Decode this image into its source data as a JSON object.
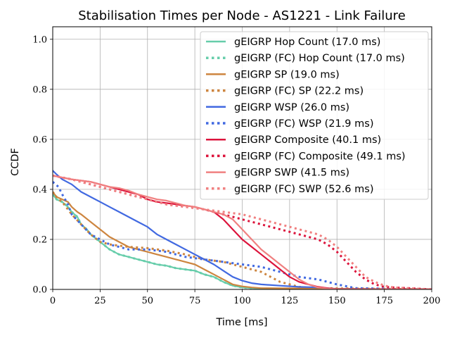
{
  "chart_data": {
    "type": "line",
    "title": "Stabilisation Times per Node - AS1221 - Link Failure",
    "xlabel": "Time [ms]",
    "ylabel": "CCDF",
    "xlim": [
      0,
      200
    ],
    "ylim": [
      0,
      1.05
    ],
    "xticks": [
      0,
      25,
      50,
      75,
      100,
      125,
      150,
      175,
      200
    ],
    "xtick_labels": [
      "0",
      "25",
      "50",
      "75",
      "100",
      "125",
      "150",
      "175",
      "200"
    ],
    "yticks": [
      0.0,
      0.2,
      0.4,
      0.6,
      0.8,
      1.0
    ],
    "ytick_labels": [
      "0.0",
      "0.2",
      "0.4",
      "0.6",
      "0.8",
      "1.0"
    ],
    "grid": true,
    "legend_position": "upper-right",
    "series": [
      {
        "name": "gEIGRP Hop Count (17.0 ms)",
        "color": "#66cdaa",
        "style": "solid",
        "x": [
          0,
          2,
          5,
          8,
          10,
          13,
          15,
          18,
          20,
          25,
          30,
          35,
          40,
          45,
          50,
          55,
          60,
          65,
          70,
          75,
          80,
          85,
          90,
          95,
          100,
          105,
          110,
          200
        ],
        "y": [
          0.38,
          0.36,
          0.35,
          0.33,
          0.31,
          0.29,
          0.26,
          0.24,
          0.22,
          0.19,
          0.16,
          0.14,
          0.13,
          0.12,
          0.11,
          0.1,
          0.095,
          0.085,
          0.08,
          0.075,
          0.06,
          0.05,
          0.03,
          0.015,
          0.008,
          0.005,
          0.003,
          0.0
        ]
      },
      {
        "name": "gEIGRP (FC) Hop Count (17.0 ms)",
        "color": "#66cdaa",
        "style": "dotted",
        "x": [
          0,
          2,
          5,
          8,
          10,
          13,
          15,
          18,
          20,
          25,
          30,
          35,
          40,
          45,
          50,
          55,
          60,
          65,
          70,
          75,
          80,
          85,
          90,
          95,
          100,
          105,
          110,
          200
        ],
        "y": [
          0.38,
          0.36,
          0.35,
          0.33,
          0.31,
          0.29,
          0.26,
          0.24,
          0.22,
          0.19,
          0.16,
          0.14,
          0.13,
          0.12,
          0.11,
          0.1,
          0.095,
          0.085,
          0.08,
          0.075,
          0.06,
          0.05,
          0.03,
          0.015,
          0.008,
          0.005,
          0.003,
          0.0
        ]
      },
      {
        "name": "gEIGRP SP (19.0 ms)",
        "color": "#cd853f",
        "style": "solid",
        "x": [
          0,
          2,
          5,
          8,
          10,
          13,
          15,
          20,
          25,
          30,
          35,
          40,
          45,
          50,
          55,
          60,
          65,
          70,
          75,
          80,
          85,
          90,
          95,
          100,
          105,
          110,
          200
        ],
        "y": [
          0.39,
          0.37,
          0.36,
          0.35,
          0.33,
          0.31,
          0.3,
          0.27,
          0.24,
          0.21,
          0.19,
          0.17,
          0.16,
          0.15,
          0.14,
          0.13,
          0.12,
          0.11,
          0.1,
          0.08,
          0.06,
          0.04,
          0.02,
          0.012,
          0.008,
          0.005,
          0.0
        ]
      },
      {
        "name": "gEIGRP (FC) SP (22.2 ms)",
        "color": "#cd853f",
        "style": "dotted",
        "x": [
          0,
          3,
          5,
          10,
          15,
          20,
          25,
          30,
          40,
          50,
          60,
          70,
          80,
          90,
          100,
          110,
          120,
          130,
          140,
          200
        ],
        "y": [
          0.39,
          0.36,
          0.35,
          0.3,
          0.26,
          0.22,
          0.19,
          0.18,
          0.17,
          0.165,
          0.155,
          0.14,
          0.12,
          0.11,
          0.09,
          0.07,
          0.03,
          0.01,
          0.005,
          0.0
        ]
      },
      {
        "name": "gEIGRP WSP (26.0 ms)",
        "color": "#4169e1",
        "style": "solid",
        "x": [
          0,
          2,
          5,
          10,
          15,
          20,
          25,
          30,
          35,
          40,
          45,
          50,
          55,
          60,
          65,
          70,
          75,
          80,
          85,
          90,
          95,
          100,
          105,
          110,
          120,
          130,
          140,
          150,
          200
        ],
        "y": [
          0.475,
          0.46,
          0.44,
          0.42,
          0.39,
          0.37,
          0.35,
          0.33,
          0.31,
          0.29,
          0.27,
          0.25,
          0.22,
          0.2,
          0.18,
          0.16,
          0.14,
          0.12,
          0.1,
          0.075,
          0.05,
          0.035,
          0.025,
          0.02,
          0.015,
          0.01,
          0.008,
          0.002,
          0.0
        ]
      },
      {
        "name": "gEIGRP (FC) WSP (21.9 ms)",
        "color": "#4169e1",
        "style": "dotted",
        "x": [
          0,
          3,
          5,
          8,
          10,
          15,
          20,
          25,
          30,
          35,
          40,
          50,
          60,
          70,
          80,
          90,
          100,
          110,
          120,
          130,
          140,
          145,
          150,
          160,
          200
        ],
        "y": [
          0.43,
          0.41,
          0.38,
          0.34,
          0.3,
          0.26,
          0.22,
          0.2,
          0.18,
          0.17,
          0.16,
          0.16,
          0.15,
          0.13,
          0.12,
          0.11,
          0.1,
          0.09,
          0.07,
          0.05,
          0.04,
          0.03,
          0.02,
          0.005,
          0.0
        ]
      },
      {
        "name": "gEIGRP Composite (40.1 ms)",
        "color": "#dc143c",
        "style": "solid",
        "x": [
          0,
          10,
          20,
          25,
          30,
          35,
          40,
          45,
          50,
          55,
          60,
          65,
          70,
          75,
          80,
          85,
          90,
          95,
          100,
          105,
          110,
          115,
          120,
          125,
          130,
          135,
          140,
          145,
          150,
          200
        ],
        "y": [
          0.455,
          0.44,
          0.43,
          0.42,
          0.41,
          0.4,
          0.39,
          0.38,
          0.36,
          0.35,
          0.345,
          0.34,
          0.335,
          0.33,
          0.32,
          0.31,
          0.28,
          0.24,
          0.2,
          0.17,
          0.14,
          0.11,
          0.08,
          0.05,
          0.03,
          0.02,
          0.01,
          0.005,
          0.002,
          0.0
        ]
      },
      {
        "name": "gEIGRP (FC) Composite (49.1 ms)",
        "color": "#dc143c",
        "style": "dotted",
        "x": [
          0,
          10,
          20,
          25,
          30,
          40,
          50,
          60,
          70,
          80,
          90,
          100,
          110,
          120,
          130,
          140,
          145,
          150,
          155,
          160,
          165,
          170,
          175,
          180,
          190,
          200
        ],
        "y": [
          0.455,
          0.44,
          0.42,
          0.41,
          0.4,
          0.38,
          0.36,
          0.34,
          0.33,
          0.32,
          0.3,
          0.28,
          0.26,
          0.24,
          0.22,
          0.2,
          0.18,
          0.15,
          0.11,
          0.07,
          0.04,
          0.02,
          0.01,
          0.008,
          0.004,
          0.0
        ]
      },
      {
        "name": "gEIGRP SWP (41.5 ms)",
        "color": "#f08080",
        "style": "solid",
        "x": [
          0,
          10,
          20,
          25,
          30,
          35,
          40,
          45,
          50,
          55,
          60,
          65,
          70,
          75,
          80,
          85,
          90,
          95,
          100,
          105,
          110,
          115,
          120,
          125,
          130,
          135,
          140,
          145,
          150,
          200
        ],
        "y": [
          0.455,
          0.44,
          0.43,
          0.42,
          0.41,
          0.405,
          0.395,
          0.38,
          0.37,
          0.36,
          0.355,
          0.345,
          0.335,
          0.33,
          0.32,
          0.31,
          0.3,
          0.28,
          0.24,
          0.2,
          0.16,
          0.13,
          0.1,
          0.07,
          0.04,
          0.02,
          0.008,
          0.003,
          0.001,
          0.0
        ]
      },
      {
        "name": "gEIGRP (FC) SWP (52.6 ms)",
        "color": "#f08080",
        "style": "dotted",
        "x": [
          0,
          10,
          20,
          30,
          40,
          50,
          60,
          70,
          80,
          90,
          100,
          110,
          120,
          130,
          140,
          145,
          150,
          155,
          160,
          165,
          170,
          175,
          180,
          190,
          200
        ],
        "y": [
          0.455,
          0.44,
          0.42,
          0.4,
          0.38,
          0.36,
          0.34,
          0.33,
          0.32,
          0.31,
          0.3,
          0.28,
          0.26,
          0.24,
          0.22,
          0.2,
          0.17,
          0.13,
          0.09,
          0.05,
          0.03,
          0.015,
          0.008,
          0.004,
          0.0
        ]
      }
    ]
  }
}
